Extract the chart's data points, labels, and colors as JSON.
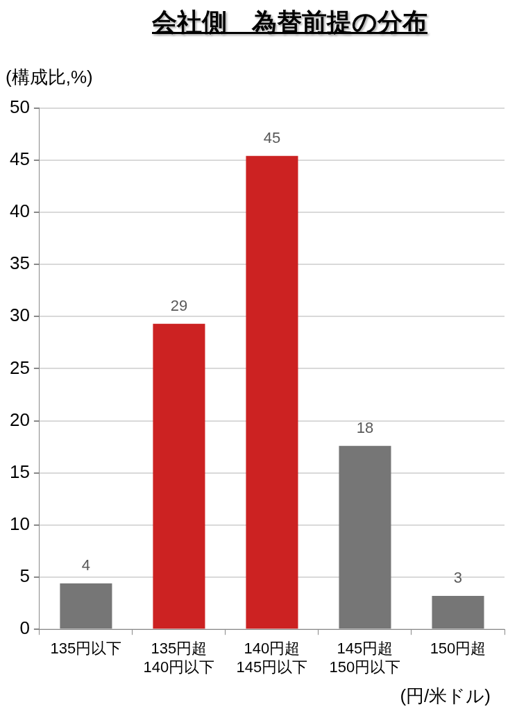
{
  "chart_data": {
    "type": "bar",
    "title": "会社側　為替前提の分布",
    "ylabel": "(構成比,%)",
    "xlabel": "(円/米ドル)",
    "categories": [
      "135円以下",
      "135円超\n140円以下",
      "140円超\n145円以下",
      "145円超\n150円以下",
      "150円超"
    ],
    "values": [
      4.4,
      29.3,
      45.4,
      17.6,
      3.2
    ],
    "value_labels": [
      "4",
      "29",
      "45",
      "18",
      "3"
    ],
    "colors": [
      "#767676",
      "#cc2222",
      "#cc2222",
      "#767676",
      "#767676"
    ],
    "ylim": [
      0,
      50
    ],
    "yticks": [
      0,
      5,
      10,
      15,
      20,
      25,
      30,
      35,
      40,
      45,
      50
    ],
    "grid": "y",
    "legend": false
  }
}
